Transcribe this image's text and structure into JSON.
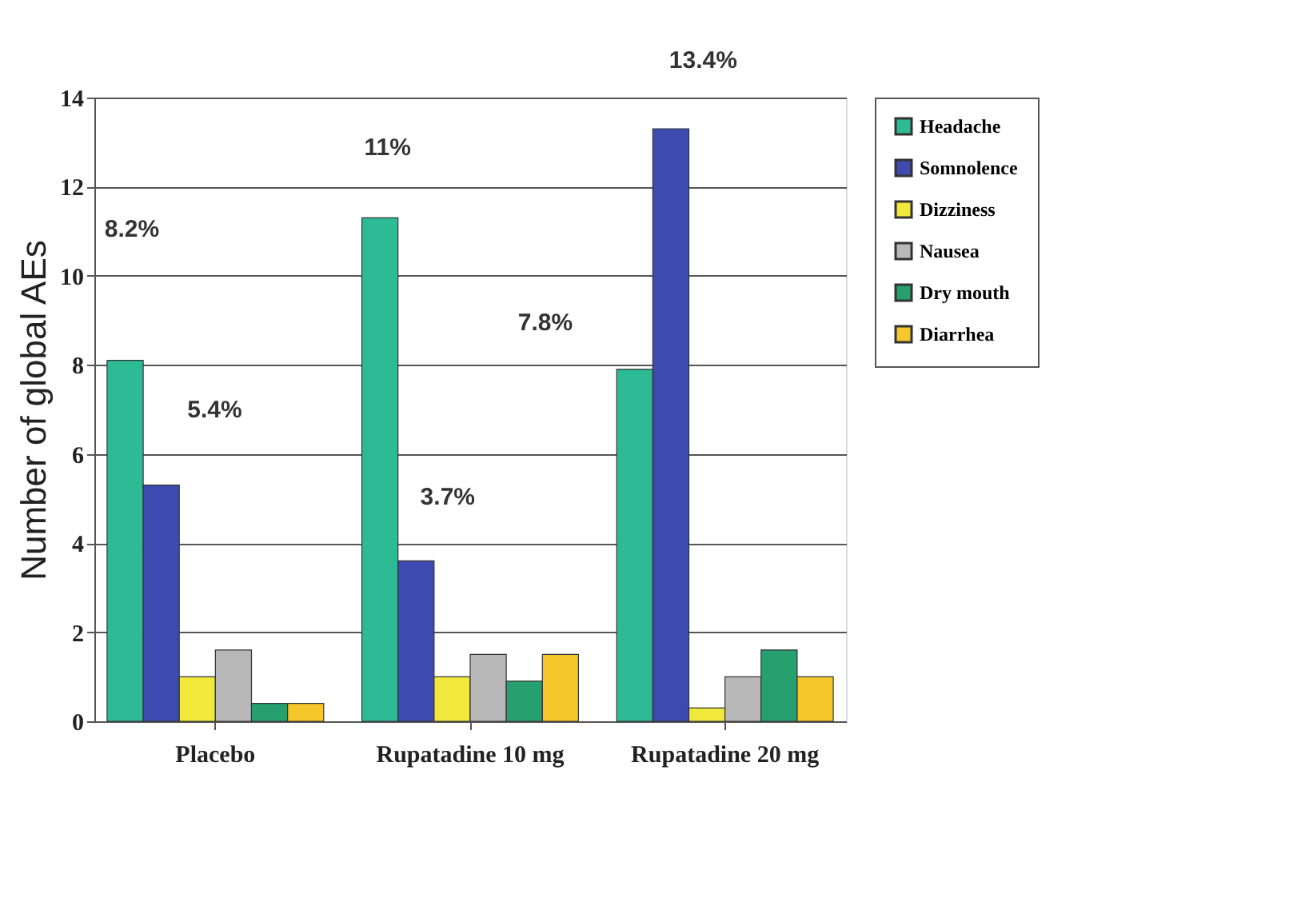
{
  "chart_data": {
    "type": "bar",
    "ylabel": "Number of global AEs",
    "categories": [
      "Placebo",
      "Rupatadine 10 mg",
      "Rupatadine 20 mg"
    ],
    "series": [
      {
        "name": "Headache",
        "color": "#2dbb96",
        "values": [
          8.1,
          11.3,
          7.9
        ]
      },
      {
        "name": "Somnolence",
        "color": "#3d4bb0",
        "values": [
          5.3,
          3.6,
          13.3
        ]
      },
      {
        "name": "Dizziness",
        "color": "#f0e83a",
        "values": [
          1.0,
          1.0,
          0.3
        ]
      },
      {
        "name": "Nausea",
        "color": "#b8b8b8",
        "values": [
          1.6,
          1.5,
          1.0
        ]
      },
      {
        "name": "Dry mouth",
        "color": "#27a070",
        "values": [
          0.4,
          0.9,
          1.6
        ]
      },
      {
        "name": "Diarrhea",
        "color": "#f5c72a",
        "values": [
          0.4,
          1.5,
          1.0
        ]
      }
    ],
    "ylim": [
      0,
      14
    ],
    "yticks": [
      0,
      2,
      4,
      6,
      8,
      10,
      12,
      14
    ],
    "grid": "y",
    "legend": "right",
    "annotations": [
      "8.2%",
      "5.4%",
      "11%",
      "3.7%",
      "7.8%",
      "13.4%"
    ]
  }
}
